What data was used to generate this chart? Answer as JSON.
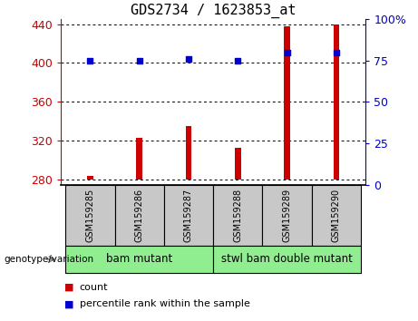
{
  "title": "GDS2734 / 1623853_at",
  "samples": [
    "GSM159285",
    "GSM159286",
    "GSM159287",
    "GSM159288",
    "GSM159289",
    "GSM159290"
  ],
  "counts": [
    284,
    323,
    335,
    313,
    438,
    440
  ],
  "percentile_ranks": [
    75,
    75,
    76,
    75,
    80,
    80
  ],
  "ylim_left": [
    275,
    445
  ],
  "ylim_right": [
    0,
    100
  ],
  "yticks_left": [
    280,
    320,
    360,
    400,
    440
  ],
  "yticks_right": [
    0,
    25,
    50,
    75,
    100
  ],
  "ytick_labels_right": [
    "0",
    "25",
    "50",
    "75",
    "100%"
  ],
  "bar_color": "#cc0000",
  "dot_color": "#0000cc",
  "bar_bottom": 280,
  "bar_width": 0.12,
  "groups": [
    {
      "label": "bam mutant",
      "indices": [
        0,
        1,
        2
      ]
    },
    {
      "label": "stwl bam double mutant",
      "indices": [
        3,
        4,
        5
      ]
    }
  ],
  "group_label": "genotype/variation",
  "legend_count_label": "count",
  "legend_percentile_label": "percentile rank within the sample",
  "title_color": "#000000",
  "left_axis_color": "#cc0000",
  "right_axis_color": "#0000cc",
  "grid_color": "#000000",
  "background_xlabel": "#c8c8c8",
  "background_group": "#90ee90"
}
